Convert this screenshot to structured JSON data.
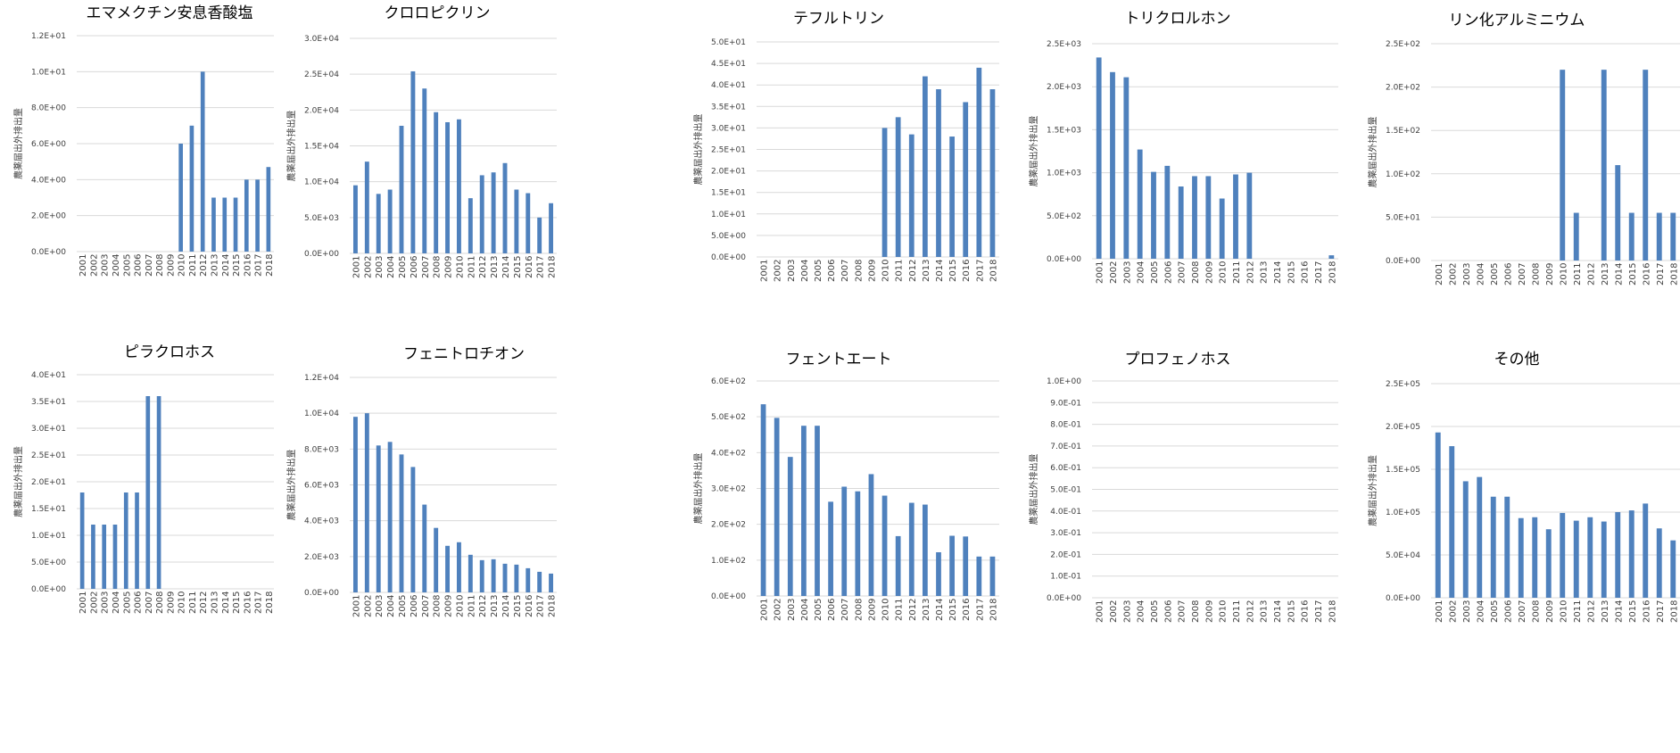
{
  "chart_data": [
    {
      "type": "bar",
      "title": "エマメクチン安息香酸塩",
      "ylabel": "農薬届出外排出量",
      "categories": [
        "2001",
        "2002",
        "2003",
        "2004",
        "2005",
        "2006",
        "2007",
        "2008",
        "2009",
        "2010",
        "2011",
        "2012",
        "2013",
        "2014",
        "2015",
        "2016",
        "2017",
        "2018"
      ],
      "values": [
        0,
        0,
        0,
        0,
        0,
        0,
        0,
        0,
        0,
        6,
        7,
        10,
        3,
        3,
        3,
        4,
        4,
        4.7
      ],
      "ylim": [
        0,
        12
      ],
      "yticks": [
        "0.0E+00",
        "2.0E+00",
        "4.0E+00",
        "6.0E+00",
        "8.0E+00",
        "1.0E+01",
        "1.2E+01"
      ],
      "grid": true
    },
    {
      "type": "bar",
      "title": "クロロピクリン",
      "ylabel": "農薬届出外排出量",
      "categories": [
        "2001",
        "2002",
        "2003",
        "2004",
        "2005",
        "2006",
        "2007",
        "2008",
        "2009",
        "2010",
        "2011",
        "2012",
        "2013",
        "2014",
        "2015",
        "2016",
        "2017",
        "2018"
      ],
      "values": [
        9500,
        12800,
        8300,
        8900,
        17800,
        25400,
        23000,
        19700,
        18300,
        18700,
        7700,
        10900,
        11300,
        12600,
        8900,
        8400,
        5000,
        7000
      ],
      "ylim": [
        0,
        30000
      ],
      "yticks": [
        "0.0E+00",
        "5.0E+03",
        "1.0E+04",
        "1.5E+04",
        "2.0E+04",
        "2.5E+04",
        "3.0E+04"
      ],
      "grid": true
    },
    {
      "type": "bar",
      "title": "テフルトリン",
      "ylabel": "農薬届出外排出量",
      "categories": [
        "2001",
        "2002",
        "2003",
        "2004",
        "2005",
        "2006",
        "2007",
        "2008",
        "2009",
        "2010",
        "2011",
        "2012",
        "2013",
        "2014",
        "2015",
        "2016",
        "2017",
        "2018"
      ],
      "values": [
        0,
        0,
        0,
        0,
        0,
        0,
        0,
        0,
        0,
        30,
        32.5,
        28.5,
        42,
        39,
        28,
        36,
        44,
        39
      ],
      "ylim": [
        0,
        50
      ],
      "yticks": [
        "0.0E+00",
        "5.0E+00",
        "1.0E+01",
        "1.5E+01",
        "2.0E+01",
        "2.5E+01",
        "3.0E+01",
        "3.5E+01",
        "4.0E+01",
        "4.5E+01",
        "5.0E+01"
      ],
      "grid": true
    },
    {
      "type": "bar",
      "title": "トリクロルホン",
      "ylabel": "農薬届出外排出量",
      "categories": [
        "2001",
        "2002",
        "2003",
        "2004",
        "2005",
        "2006",
        "2007",
        "2008",
        "2009",
        "2010",
        "2011",
        "2012",
        "2013",
        "2014",
        "2015",
        "2016",
        "2017",
        "2018"
      ],
      "values": [
        2340,
        2170,
        2110,
        1270,
        1010,
        1080,
        840,
        960,
        960,
        700,
        980,
        1000,
        0,
        0,
        0,
        0,
        0,
        40
      ],
      "ylim": [
        0,
        2500
      ],
      "yticks": [
        "0.0E+00",
        "5.0E+02",
        "1.0E+03",
        "1.5E+03",
        "2.0E+03",
        "2.5E+03"
      ],
      "grid": true
    },
    {
      "type": "bar",
      "title": "リン化アルミニウム",
      "ylabel": "農薬届出外排出量",
      "categories": [
        "2001",
        "2002",
        "2003",
        "2004",
        "2005",
        "2006",
        "2007",
        "2008",
        "2009",
        "2010",
        "2011",
        "2012",
        "2013",
        "2014",
        "2015",
        "2016",
        "2017",
        "2018"
      ],
      "values": [
        0,
        0,
        0,
        0,
        0,
        0,
        0,
        0,
        0,
        220,
        55,
        0,
        220,
        110,
        55,
        220,
        55,
        55
      ],
      "ylim": [
        0,
        250
      ],
      "yticks": [
        "0.0E+00",
        "5.0E+01",
        "1.0E+02",
        "1.5E+02",
        "2.0E+02",
        "2.5E+02"
      ],
      "grid": true
    },
    {
      "type": "bar",
      "title": "ピラクロホス",
      "ylabel": "農薬届出外排出量",
      "categories": [
        "2001",
        "2002",
        "2003",
        "2004",
        "2005",
        "2006",
        "2007",
        "2008",
        "2009",
        "2010",
        "2011",
        "2012",
        "2013",
        "2014",
        "2015",
        "2016",
        "2017",
        "2018"
      ],
      "values": [
        18,
        12,
        12,
        12,
        18,
        18,
        36,
        36,
        0,
        0,
        0,
        0,
        0,
        0,
        0,
        0,
        0,
        0
      ],
      "ylim": [
        0,
        40
      ],
      "yticks": [
        "0.0E+00",
        "5.0E+00",
        "1.0E+01",
        "1.5E+01",
        "2.0E+01",
        "2.5E+01",
        "3.0E+01",
        "3.5E+01",
        "4.0E+01"
      ],
      "grid": true
    },
    {
      "type": "bar",
      "title": "フェニトロチオン",
      "ylabel": "農薬届出外排出量",
      "categories": [
        "2001",
        "2002",
        "2003",
        "2004",
        "2005",
        "2006",
        "2007",
        "2008",
        "2009",
        "2010",
        "2011",
        "2012",
        "2013",
        "2014",
        "2015",
        "2016",
        "2017",
        "2018"
      ],
      "values": [
        9800,
        10000,
        8200,
        8400,
        7700,
        7000,
        4900,
        3600,
        2600,
        2800,
        2100,
        1800,
        1850,
        1600,
        1550,
        1350,
        1150,
        1050
      ],
      "ylim": [
        0,
        12000
      ],
      "yticks": [
        "0.0E+00",
        "2.0E+03",
        "4.0E+03",
        "6.0E+03",
        "8.0E+03",
        "1.0E+04",
        "1.2E+04"
      ],
      "grid": true
    },
    {
      "type": "bar",
      "title": "フェントエート",
      "ylabel": "農薬届出外排出量",
      "categories": [
        "2001",
        "2002",
        "2003",
        "2004",
        "2005",
        "2006",
        "2007",
        "2008",
        "2009",
        "2010",
        "2011",
        "2012",
        "2013",
        "2014",
        "2015",
        "2016",
        "2017",
        "2018"
      ],
      "values": [
        535,
        497,
        388,
        475,
        475,
        263,
        305,
        292,
        340,
        280,
        167,
        260,
        255,
        122,
        168,
        166,
        110,
        110
      ],
      "ylim": [
        0,
        600
      ],
      "yticks": [
        "0.0E+00",
        "1.0E+02",
        "2.0E+02",
        "3.0E+02",
        "4.0E+02",
        "5.0E+02",
        "6.0E+02"
      ],
      "grid": true
    },
    {
      "type": "bar",
      "title": "プロフェノホス",
      "ylabel": "農薬届出外排出量",
      "categories": [
        "2001",
        "2002",
        "2003",
        "2004",
        "2005",
        "2006",
        "2007",
        "2008",
        "2009",
        "2010",
        "2011",
        "2012",
        "2013",
        "2014",
        "2015",
        "2016",
        "2017",
        "2018"
      ],
      "values": [
        0,
        0,
        0,
        0,
        0,
        0,
        0,
        0,
        0,
        0,
        0,
        0,
        0,
        0,
        0,
        0,
        0,
        0
      ],
      "ylim": [
        0,
        1
      ],
      "yticks": [
        "0.0E+00",
        "1.0E-01",
        "2.0E-01",
        "3.0E-01",
        "4.0E-01",
        "5.0E-01",
        "6.0E-01",
        "7.0E-01",
        "8.0E-01",
        "9.0E-01",
        "1.0E+00"
      ],
      "grid": true
    },
    {
      "type": "bar",
      "title": "その他",
      "ylabel": "農薬届出外排出量",
      "categories": [
        "2001",
        "2002",
        "2003",
        "2004",
        "2005",
        "2006",
        "2007",
        "2008",
        "2009",
        "2010",
        "2011",
        "2012",
        "2013",
        "2014",
        "2015",
        "2016",
        "2017",
        "2018"
      ],
      "values": [
        193000,
        177000,
        136000,
        141000,
        118000,
        118000,
        93000,
        94000,
        80000,
        99000,
        90000,
        94000,
        89000,
        100000,
        102000,
        110000,
        81000,
        67000
      ],
      "ylim": [
        0,
        250000
      ],
      "yticks": [
        "0.0E+00",
        "5.0E+04",
        "1.0E+05",
        "1.5E+05",
        "2.0E+05",
        "2.5E+05"
      ],
      "grid": true
    }
  ]
}
